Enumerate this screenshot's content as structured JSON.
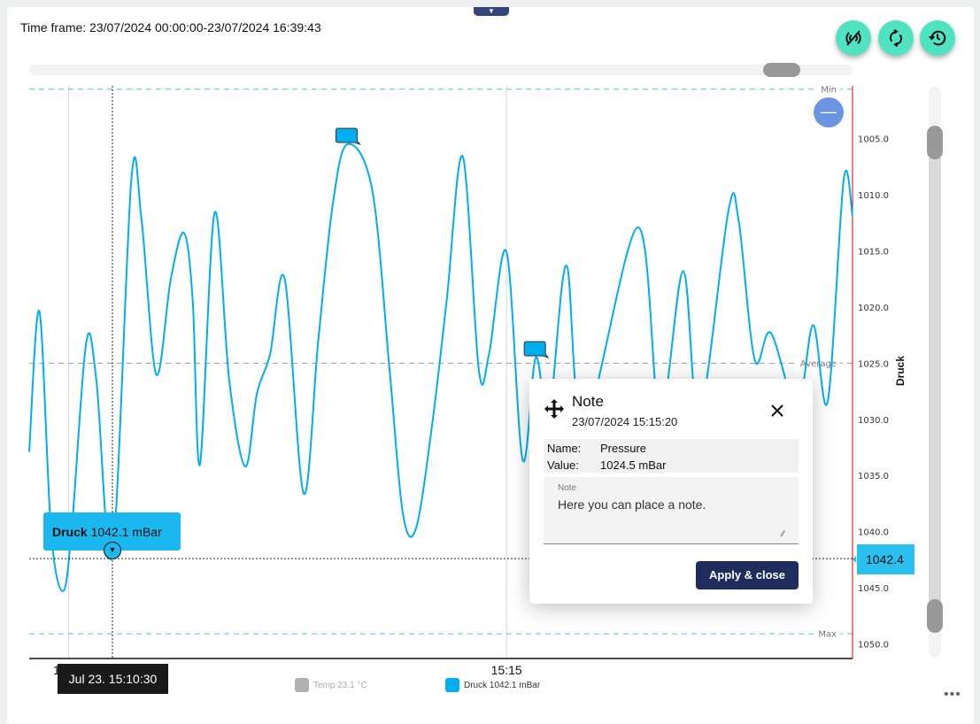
{
  "header": {
    "title": "Time frame: 23/07/2024 00:00:00-23/07/2024 16:39:43",
    "collapse_icon": "caret-down-icon",
    "buttons": [
      {
        "icon": "signal-off-icon"
      },
      {
        "icon": "refresh-icon"
      },
      {
        "icon": "history-icon"
      }
    ]
  },
  "colors": {
    "line": "#00aeef",
    "accent": "#4fe3c1",
    "dialog_button": "#1f2d5c",
    "tooltip": "#1ab8ef"
  },
  "chart_data": {
    "type": "line",
    "ylabel": "Druck",
    "x_tick_labels": [
      "15:10",
      "15:15"
    ],
    "x_ticks": [
      "15:10:00",
      "15:15:00"
    ],
    "y_ticks": [
      1005.0,
      1010.0,
      1015.0,
      1020.0,
      1025.0,
      1030.0,
      1035.0,
      1040.0,
      1045.0,
      1050.0
    ],
    "y_tick_labels": [
      "1005.0",
      "1010.0",
      "1015.0",
      "1020.0",
      "1025.0",
      "1030.0",
      "1035.0",
      "1040.0",
      "1045.0",
      "1050.0"
    ],
    "xlim": [
      "15:09:33",
      "15:18:57"
    ],
    "ylim": [
      1000.3,
      1051.3
    ],
    "y_inverted": true,
    "grid": "vertical at x ticks",
    "reference_lines": [
      {
        "label": "Min",
        "value": 1000.6,
        "color": "#4fc3e8"
      },
      {
        "label": "Average",
        "value": 1025.0,
        "color": "#999999"
      },
      {
        "label": "Max",
        "value": 1049.1,
        "color": "#4fc3e8"
      }
    ],
    "series": [
      {
        "name": "Druck",
        "color": "#00aeef",
        "x": [
          "15:09:33",
          "15:09:40",
          "15:09:48",
          "15:09:56",
          "15:10:02",
          "15:10:12",
          "15:10:19",
          "15:10:30",
          "15:10:43",
          "15:10:50",
          "15:11:00",
          "15:11:10",
          "15:11:19",
          "15:11:25",
          "15:11:30",
          "15:11:40",
          "15:11:50",
          "15:12:01",
          "15:12:09",
          "15:12:18",
          "15:12:28",
          "15:12:41",
          "15:12:51",
          "15:13:01",
          "15:13:11",
          "15:13:28",
          "15:13:40",
          "15:13:49",
          "15:13:58",
          "15:14:09",
          "15:14:19",
          "15:14:30",
          "15:14:41",
          "15:14:48",
          "15:15:00",
          "15:15:11",
          "15:15:20",
          "15:15:29",
          "15:15:41",
          "15:15:53",
          "15:16:30",
          "15:16:45",
          "15:17:01",
          "15:17:12",
          "15:17:32",
          "15:17:39",
          "15:17:50",
          "15:18:01",
          "15:18:19",
          "15:18:30",
          "15:18:40",
          "15:18:51",
          "15:18:57"
        ],
        "values": [
          1032.9,
          1020.4,
          1040.0,
          1045.3,
          1040.0,
          1023.2,
          1026.5,
          1042.1,
          1008.6,
          1012.3,
          1026.0,
          1017.5,
          1013.4,
          1019.4,
          1034.0,
          1011.6,
          1026.5,
          1034.2,
          1027.7,
          1024.2,
          1017.5,
          1036.6,
          1023.0,
          1010.8,
          1005.5,
          1009.6,
          1025.8,
          1038.4,
          1039.7,
          1030.5,
          1019.4,
          1006.6,
          1025.6,
          1024.2,
          1015.1,
          1033.6,
          1024.5,
          1029.7,
          1016.3,
          1030.5,
          1012.9,
          1029.7,
          1016.8,
          1029.7,
          1011.4,
          1012.3,
          1024.7,
          1022.3,
          1028.9,
          1021.6,
          1028.4,
          1008.6,
          1011.9
        ]
      }
    ],
    "note_markers": [
      {
        "x": "15:13:11",
        "value": 1005.5
      },
      {
        "x": "15:15:20",
        "value": 1024.5
      }
    ],
    "crosshair": {
      "x": "15:10:30",
      "value": 1042.4,
      "value_label": "1042.4",
      "date_label": "Jul 23. 15:10:30"
    },
    "tooltip": {
      "series": "Druck",
      "value": "1042.1 mBar"
    },
    "legend": [
      {
        "label": "Temp 23.1 °C",
        "color": "#b0b0b0",
        "active": false
      },
      {
        "label": "Druck 1042.1 mBar",
        "color": "#00aeef",
        "active": true
      }
    ]
  },
  "zoom_sliders": {
    "horizontal_position": 0.93,
    "vertical_range": [
      0.1,
      0.93
    ]
  },
  "minus_button": {
    "label": "—"
  },
  "more_menu": {
    "label": "•••"
  },
  "note_dialog": {
    "title": "Note",
    "timestamp": "23/07/2024 15:15:20",
    "name_label": "Name:",
    "name_value": "Pressure",
    "value_label": "Value:",
    "value_value": "1024.5 mBar",
    "note_label": "Note",
    "note_text": "Here you can place a note.",
    "apply_label": "Apply & close"
  }
}
